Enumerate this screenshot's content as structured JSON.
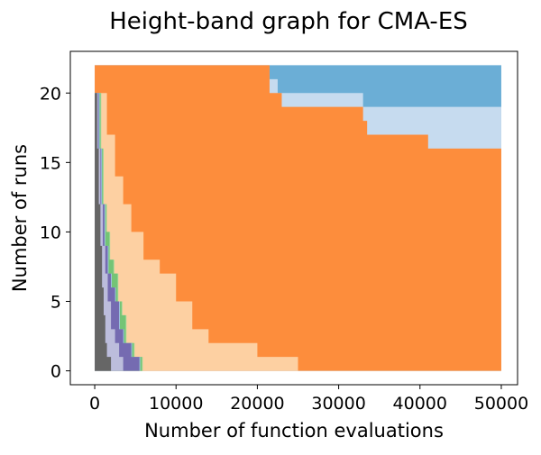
{
  "chart_data": {
    "type": "area",
    "title": "Height-band graph for CMA-ES",
    "xlabel": "Number of function evaluations",
    "ylabel": "Number of runs",
    "xlim": [
      -3000,
      52000
    ],
    "ylim": [
      -1,
      23
    ],
    "x_ticks": [
      0,
      10000,
      20000,
      30000,
      40000,
      50000
    ],
    "x_tick_labels": [
      "0",
      "10000",
      "20000",
      "30000",
      "40000",
      "50000"
    ],
    "y_ticks": [
      0,
      5,
      10,
      15,
      20
    ],
    "y_tick_labels": [
      "0",
      "5",
      "10",
      "15",
      "20"
    ],
    "grid": false,
    "legend": "none",
    "series": [
      {
        "color": "#666666",
        "points": [
          [
            0,
            22
          ],
          [
            300,
            20
          ],
          [
            500,
            16
          ],
          [
            700,
            12
          ],
          [
            900,
            9
          ],
          [
            1100,
            6
          ],
          [
            1300,
            4
          ],
          [
            1500,
            2
          ],
          [
            2000,
            1
          ],
          [
            2500,
            0
          ]
        ]
      },
      {
        "color": "#bcbddc",
        "points": [
          [
            0,
            22
          ],
          [
            400,
            20
          ],
          [
            700,
            16
          ],
          [
            1000,
            12
          ],
          [
            1300,
            9
          ],
          [
            1600,
            7
          ],
          [
            2000,
            5
          ],
          [
            2500,
            3
          ],
          [
            3000,
            2
          ],
          [
            3500,
            1
          ],
          [
            4000,
            0
          ]
        ]
      },
      {
        "color": "#756bb1",
        "points": [
          [
            0,
            22
          ],
          [
            500,
            20
          ],
          [
            800,
            16
          ],
          [
            1200,
            12
          ],
          [
            1600,
            9
          ],
          [
            2000,
            7
          ],
          [
            2500,
            6
          ],
          [
            3000,
            5
          ],
          [
            3500,
            3
          ],
          [
            4500,
            2
          ],
          [
            5500,
            1
          ],
          [
            6500,
            0
          ]
        ]
      },
      {
        "color": "#9ecae1",
        "points": [
          [
            0,
            22
          ],
          [
            600,
            20
          ],
          [
            900,
            16
          ],
          [
            1300,
            12
          ],
          [
            1700,
            9
          ],
          [
            2100,
            7
          ],
          [
            2600,
            6
          ],
          [
            3100,
            5
          ],
          [
            3600,
            3
          ],
          [
            4600,
            2
          ],
          [
            5600,
            1
          ],
          [
            6600,
            0
          ]
        ]
      },
      {
        "color": "#74c476",
        "points": [
          [
            0,
            22
          ],
          [
            700,
            20
          ],
          [
            1000,
            16
          ],
          [
            1400,
            12
          ],
          [
            1800,
            10
          ],
          [
            2300,
            8
          ],
          [
            2800,
            7
          ],
          [
            3300,
            5
          ],
          [
            3800,
            4
          ],
          [
            4800,
            2
          ],
          [
            5800,
            1
          ],
          [
            6700,
            0
          ]
        ]
      },
      {
        "color": "#a1d99b",
        "points": [
          [
            0,
            22
          ],
          [
            800,
            20
          ],
          [
            1100,
            16
          ],
          [
            1500,
            12
          ],
          [
            1900,
            10
          ],
          [
            2400,
            8
          ],
          [
            2900,
            7
          ],
          [
            3400,
            5
          ],
          [
            3900,
            4
          ],
          [
            4900,
            2
          ],
          [
            5900,
            1
          ],
          [
            6800,
            0
          ]
        ]
      },
      {
        "color": "#fdd0a2",
        "points": [
          [
            0,
            22
          ],
          [
            1500,
            20
          ],
          [
            2500,
            17
          ],
          [
            3500,
            14
          ],
          [
            4500,
            12
          ],
          [
            6000,
            10
          ],
          [
            8000,
            8
          ],
          [
            10000,
            7
          ],
          [
            12000,
            5
          ],
          [
            14000,
            3
          ],
          [
            20000,
            2
          ],
          [
            25000,
            1
          ],
          [
            29500,
            0
          ]
        ]
      },
      {
        "color": "#fd8d3c",
        "points": [
          [
            0,
            22
          ],
          [
            21500,
            22
          ],
          [
            23000,
            20
          ],
          [
            33000,
            19
          ],
          [
            33500,
            18
          ],
          [
            41000,
            17
          ],
          [
            43000,
            16
          ],
          [
            50000,
            16
          ]
        ]
      },
      {
        "color": "#c6dbef",
        "points": [
          [
            0,
            22
          ],
          [
            21500,
            22
          ],
          [
            22500,
            21
          ],
          [
            33000,
            20
          ],
          [
            41000,
            19
          ],
          [
            50000,
            19
          ]
        ]
      },
      {
        "color": "#6baed6",
        "points": [
          [
            0,
            22
          ],
          [
            50000,
            22
          ]
        ]
      }
    ]
  }
}
